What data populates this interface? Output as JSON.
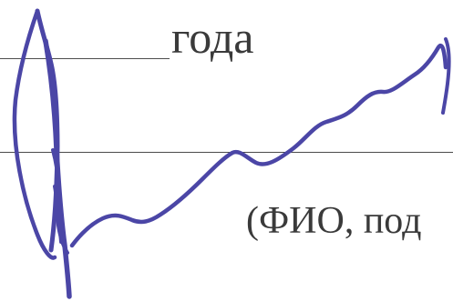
{
  "form": {
    "year_word": "года",
    "caption": "(ФИО, под"
  },
  "signature": {
    "ink_color": "#4b46a6"
  }
}
